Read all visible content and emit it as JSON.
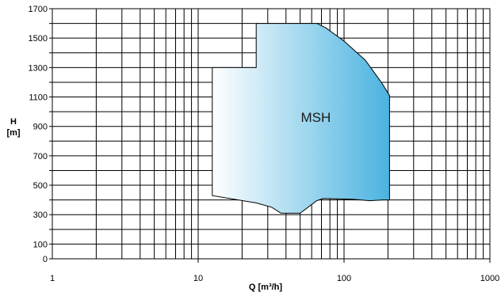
{
  "chart_data": {
    "type": "area",
    "title": "",
    "xlabel": "Q [m³/h]",
    "ylabel_lines": [
      "H",
      "[m]"
    ],
    "x_scale": "log",
    "xlim": [
      1,
      1000
    ],
    "ylim": [
      0,
      1700
    ],
    "grid": true,
    "x_ticks": [
      {
        "value": 1,
        "label": "1"
      },
      {
        "value": 10,
        "label": "10"
      },
      {
        "value": 100,
        "label": "100"
      },
      {
        "value": 1000,
        "label": "1000"
      }
    ],
    "y_ticks": [
      {
        "value": 0,
        "label": "0"
      },
      {
        "value": 100,
        "label": "100"
      },
      {
        "value": 300,
        "label": "300"
      },
      {
        "value": 500,
        "label": "500"
      },
      {
        "value": 700,
        "label": "700"
      },
      {
        "value": 900,
        "label": "900"
      },
      {
        "value": 1100,
        "label": "1100"
      },
      {
        "value": 1300,
        "label": "1300"
      },
      {
        "value": 1500,
        "label": "1500"
      },
      {
        "value": 1700,
        "label": "1700"
      }
    ],
    "y_minor_ticks": [
      200,
      400,
      600,
      800,
      1000,
      1200,
      1400,
      1600
    ],
    "regions": [
      {
        "name": "MSH",
        "label_at": {
          "x": 64,
          "y": 930
        },
        "gradient": [
          "#ffffff",
          "#4ab3e0"
        ],
        "outline": [
          {
            "x": 12.5,
            "y": 1300
          },
          {
            "x": 25,
            "y": 1300
          },
          {
            "x": 25,
            "y": 1600
          },
          {
            "x": 65,
            "y": 1600
          },
          {
            "x": 75,
            "y": 1570
          },
          {
            "x": 100,
            "y": 1480
          },
          {
            "x": 140,
            "y": 1350
          },
          {
            "x": 180,
            "y": 1200
          },
          {
            "x": 205,
            "y": 1110
          },
          {
            "x": 205,
            "y": 400
          },
          {
            "x": 185,
            "y": 400
          },
          {
            "x": 150,
            "y": 395
          },
          {
            "x": 115,
            "y": 405
          },
          {
            "x": 72,
            "y": 410
          },
          {
            "x": 65,
            "y": 395
          },
          {
            "x": 50,
            "y": 310
          },
          {
            "x": 37,
            "y": 310
          },
          {
            "x": 32,
            "y": 350
          },
          {
            "x": 25,
            "y": 380
          },
          {
            "x": 12.5,
            "y": 430
          }
        ]
      }
    ]
  }
}
